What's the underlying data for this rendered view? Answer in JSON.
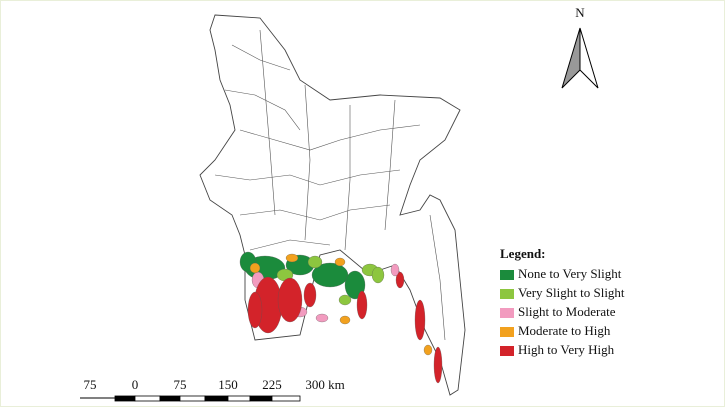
{
  "north_arrow": {
    "label": "N"
  },
  "legend": {
    "title": "Legend:",
    "items": [
      {
        "label": "None to Very Slight",
        "color": "#1b8b3c"
      },
      {
        "label": "Very Slight to Slight",
        "color": "#8dc63f"
      },
      {
        "label": "Slight to Moderate",
        "color": "#f29bbf"
      },
      {
        "label": "Moderate to High",
        "color": "#f2a11e"
      },
      {
        "label": "High to Very High",
        "color": "#d3232a"
      }
    ]
  },
  "scale_bar": {
    "labels": [
      "75",
      "0",
      "75",
      "150",
      "225",
      "300 km"
    ]
  }
}
